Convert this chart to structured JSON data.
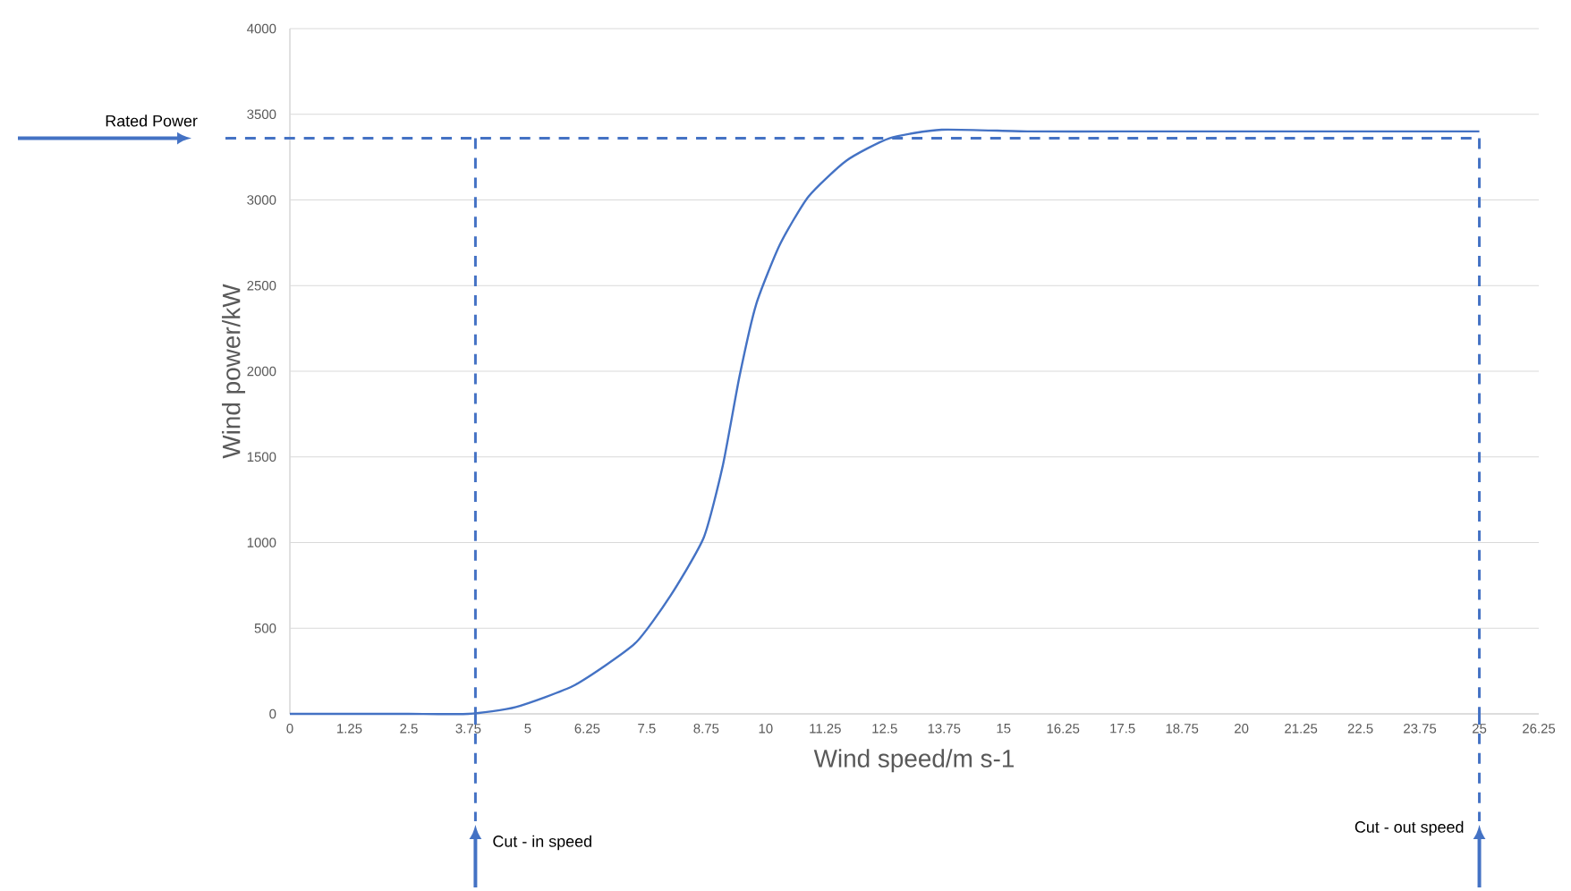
{
  "chart_data": {
    "type": "line",
    "xlabel": "Wind speed/m s-1",
    "ylabel": "Wind power/kW",
    "x": [
      0,
      1.25,
      2.5,
      3.75,
      4.75,
      6,
      7.25,
      8,
      8.7,
      9.1,
      9.45,
      9.8,
      10.3,
      10.9,
      11.7,
      12.6,
      13.7,
      15.5,
      17.5,
      20,
      22.5,
      25
    ],
    "series": [
      {
        "color": "#4472c4",
        "values": [
          0,
          0,
          0,
          0,
          40,
          170,
          410,
          690,
          1030,
          1450,
          1970,
          2390,
          2740,
          3020,
          3230,
          3360,
          3410,
          3400,
          3400,
          3400,
          3400,
          3400
        ]
      }
    ],
    "xlim": [
      0,
      26.25
    ],
    "xticks": [
      0,
      1.25,
      2.5,
      3.75,
      5,
      6.25,
      7.5,
      8.75,
      10,
      11.25,
      12.5,
      13.75,
      15,
      16.25,
      17.5,
      18.75,
      20,
      21.25,
      22.5,
      23.75,
      25,
      26.25
    ],
    "ylim": [
      0,
      4000
    ],
    "yticks": [
      0,
      500,
      1000,
      1500,
      2000,
      2500,
      3000,
      3500,
      4000
    ],
    "grid": "y",
    "marker": "none",
    "line_style": "solid",
    "ref_lines": [
      {
        "axis": "y",
        "value": 3360,
        "label": "Rated Power",
        "color": "#4472c4",
        "line_style": "dashed"
      },
      {
        "axis": "x",
        "value": 3.9,
        "label": "Cut - in speed",
        "color": "#4472c4",
        "line_style": "dashed"
      },
      {
        "axis": "x",
        "value": 25,
        "label": "Cut - out speed",
        "color": "#4472c4",
        "line_style": "dashed"
      }
    ]
  }
}
